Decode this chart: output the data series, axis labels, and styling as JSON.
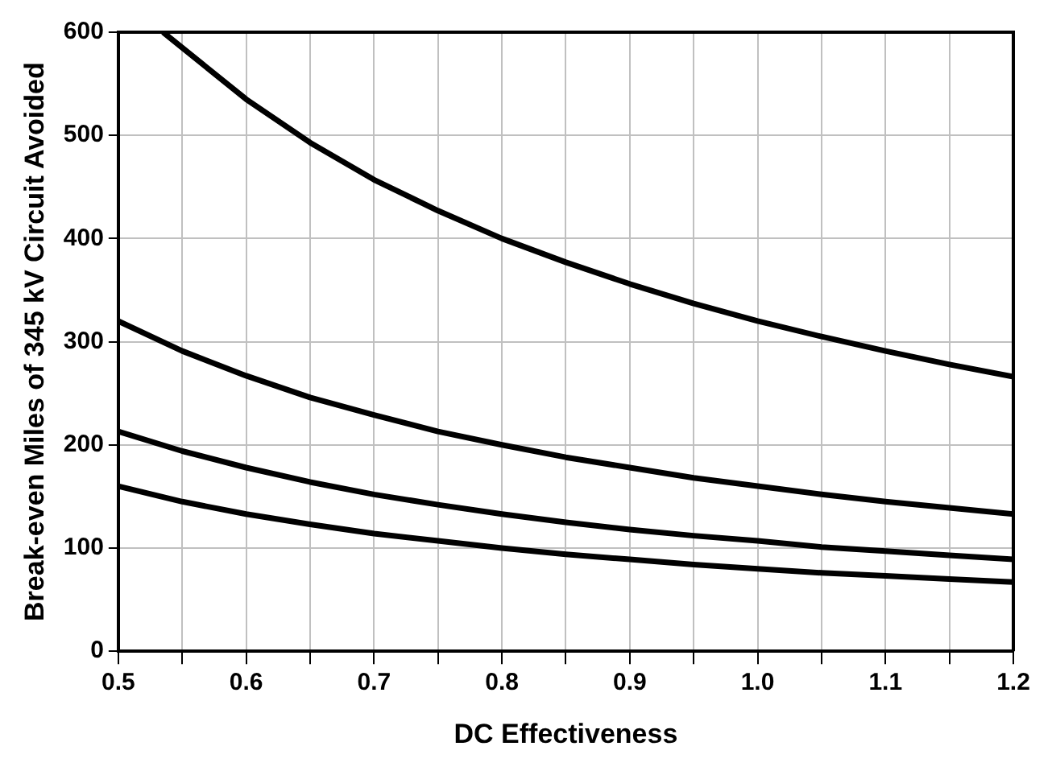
{
  "chart_data": {
    "type": "line",
    "xlabel": "DC Effectiveness",
    "ylabel": "Break-even Miles of 345 kV Circuit Avoided",
    "xlim": [
      0.5,
      1.2
    ],
    "ylim": [
      0,
      600
    ],
    "xticks": [
      0.5,
      {
        "value": 0.55,
        "label": null
      },
      0.6,
      {
        "value": 0.65,
        "label": null
      },
      0.7,
      {
        "value": 0.75,
        "label": null
      },
      0.8,
      {
        "value": 0.85,
        "label": null
      },
      0.9,
      {
        "value": 0.95,
        "label": null
      },
      {
        "value": 1,
        "label": "1.0"
      },
      {
        "value": 1.05,
        "label": null
      },
      1.1,
      {
        "value": 1.15,
        "label": null
      },
      1.2
    ],
    "yticks": [
      0,
      100,
      200,
      300,
      400,
      500,
      600
    ],
    "grid": true,
    "legend": false,
    "marker": "none",
    "line_style": "solid",
    "series": [
      {
        "color": "#000000",
        "x": [
          0.535,
          0.55,
          0.6,
          0.65,
          0.7,
          0.75,
          0.8,
          0.85,
          0.9,
          0.95,
          1.0,
          1.05,
          1.1,
          1.15,
          1.2
        ],
        "values": [
          600,
          585,
          535,
          493,
          457,
          427,
          400,
          377,
          356,
          337,
          320,
          305,
          291,
          278,
          266
        ]
      },
      {
        "color": "#000000",
        "x": [
          0.5,
          0.55,
          0.6,
          0.65,
          0.7,
          0.75,
          0.8,
          0.85,
          0.9,
          0.95,
          1.0,
          1.05,
          1.1,
          1.15,
          1.2
        ],
        "values": [
          320,
          291,
          267,
          246,
          229,
          213,
          200,
          188,
          178,
          168,
          160,
          152,
          145,
          139,
          133
        ]
      },
      {
        "color": "#000000",
        "x": [
          0.5,
          0.55,
          0.6,
          0.65,
          0.7,
          0.75,
          0.8,
          0.85,
          0.9,
          0.95,
          1.0,
          1.05,
          1.1,
          1.15,
          1.2
        ],
        "values": [
          213,
          194,
          178,
          164,
          152,
          142,
          133,
          125,
          118,
          112,
          107,
          101,
          97,
          93,
          89
        ]
      },
      {
        "color": "#000000",
        "x": [
          0.5,
          0.55,
          0.6,
          0.65,
          0.7,
          0.75,
          0.8,
          0.85,
          0.9,
          0.95,
          1.0,
          1.05,
          1.1,
          1.15,
          1.2
        ],
        "values": [
          160,
          145,
          133,
          123,
          114,
          107,
          100,
          94,
          89,
          84,
          80,
          76,
          73,
          70,
          67
        ]
      }
    ]
  }
}
